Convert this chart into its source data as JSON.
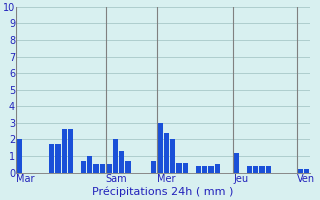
{
  "xlabel": "Précipitations 24h ( mm )",
  "ylim": [
    0,
    10
  ],
  "yticks": [
    0,
    1,
    2,
    3,
    4,
    5,
    6,
    7,
    8,
    9,
    10
  ],
  "background_color": "#d8f0f0",
  "bar_color": "#1a50d8",
  "grid_color": "#a8c8c8",
  "separator_color": "#808080",
  "day_labels": [
    "Mar",
    "Sam",
    "Mer",
    "Jeu",
    "Ven"
  ],
  "day_sep_indices": [
    0,
    14,
    22,
    34,
    44
  ],
  "values": [
    2.0,
    0.0,
    0.0,
    0.0,
    0.0,
    1.7,
    1.7,
    2.6,
    2.6,
    0.0,
    0.7,
    1.0,
    0.5,
    0.5,
    0.5,
    2.0,
    1.3,
    0.7,
    0.0,
    0.0,
    0.0,
    0.7,
    3.0,
    2.4,
    2.0,
    0.6,
    0.6,
    0.0,
    0.4,
    0.4,
    0.4,
    0.5,
    0.0,
    0.0,
    1.2,
    0.0,
    0.4,
    0.4,
    0.4,
    0.4,
    0.0,
    0.0,
    0.0,
    0.0,
    0.2,
    0.2
  ],
  "xlabel_fontsize": 8,
  "tick_fontsize": 7,
  "label_color": "#2222bb"
}
